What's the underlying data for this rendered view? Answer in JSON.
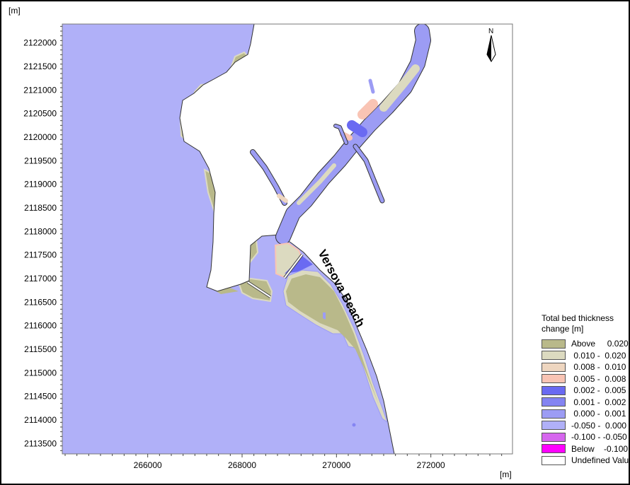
{
  "chart_data": {
    "type": "heatmap",
    "title": "",
    "xlabel": "[m]",
    "ylabel": "[m]",
    "xlim": [
      264190,
      273730
    ],
    "ylim": [
      2113280,
      2122400
    ],
    "x_ticks": [
      266000,
      268000,
      270000,
      272000
    ],
    "y_ticks": [
      2113500,
      2114000,
      2114500,
      2115000,
      2115500,
      2116000,
      2116500,
      2117000,
      2117500,
      2118000,
      2118500,
      2119000,
      2119500,
      2120000,
      2120500,
      2121000,
      2121500,
      2122000
    ],
    "annotation": "Versova Beach",
    "north_label": "N",
    "legend": {
      "title": "Total bed thickness change [m]",
      "placement": "bottom-right",
      "entries": [
        {
          "label": "Above     0.020",
          "color": "#b9b98a"
        },
        {
          "label": " 0.010 -  0.020",
          "color": "#dcdac0"
        },
        {
          "label": " 0.008 -  0.010",
          "color": "#eed6c0"
        },
        {
          "label": " 0.005 -  0.008",
          "color": "#f9c4b4"
        },
        {
          "label": " 0.002 -  0.005",
          "color": "#6a6af2"
        },
        {
          "label": " 0.001 -  0.002",
          "color": "#8484f2"
        },
        {
          "label": " 0.000 -  0.001",
          "color": "#9c9cf4"
        },
        {
          "label": "-0.050 -  0.000",
          "color": "#b0b0f8"
        },
        {
          "label": "-0.100 - -0.050",
          "color": "#d666ee"
        },
        {
          "label": "Below    -0.100",
          "color": "#ff00ff"
        },
        {
          "label": "Undefined Value",
          "color": "#ffffff"
        }
      ]
    }
  }
}
